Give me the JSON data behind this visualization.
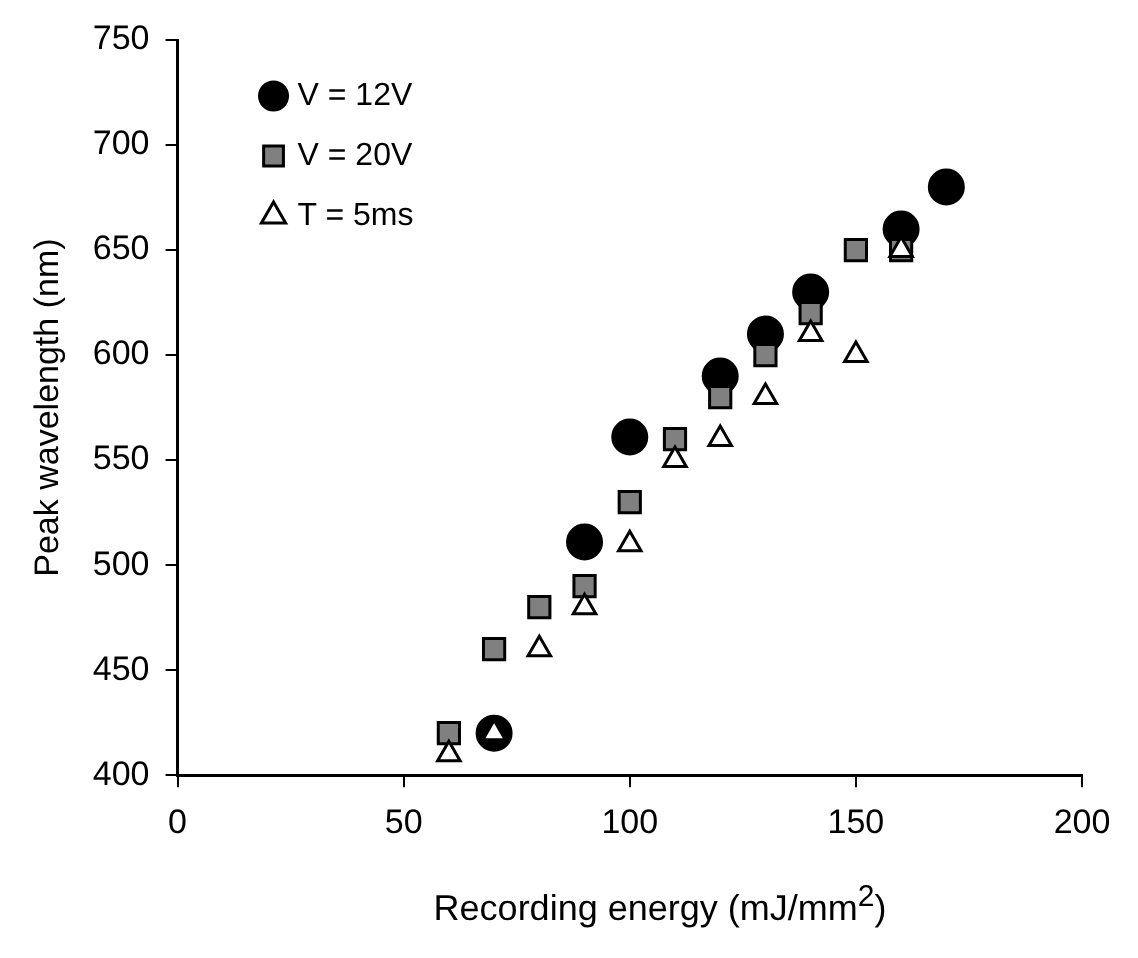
{
  "chart_data": {
    "type": "scatter",
    "xlabel": "Recording energy (mJ/mm$^{2}$)",
    "ylabel": "Peak wavelength (nm)",
    "xlim": [
      0,
      200
    ],
    "xticks": [
      0,
      50,
      100,
      150,
      200
    ],
    "ylim": [
      400,
      750
    ],
    "yticks": [
      400,
      450,
      500,
      550,
      600,
      650,
      700,
      750
    ],
    "grid": false,
    "legend": "top left",
    "series": [
      {
        "name": "V = 12V",
        "color": "#000000",
        "marker": "circle",
        "x": [
          70,
          90,
          100,
          120,
          130,
          140,
          160,
          170
        ],
        "values": [
          420,
          511,
          561,
          590,
          610,
          630,
          660,
          680
        ]
      },
      {
        "name": "V = 20V",
        "color": "#808080",
        "marker": "square",
        "x": [
          60,
          70,
          80,
          90,
          100,
          110,
          120,
          130,
          140,
          150,
          160
        ],
        "values": [
          420,
          460,
          480,
          490,
          530,
          560,
          580,
          600,
          620,
          650,
          650
        ]
      },
      {
        "name": "T = 5ms",
        "color": "#ffffff",
        "marker": "triangle",
        "x": [
          60,
          70,
          80,
          90,
          100,
          110,
          120,
          130,
          140,
          150,
          160
        ],
        "values": [
          410,
          420,
          460,
          480,
          510,
          550,
          560,
          580,
          610,
          600,
          650
        ]
      }
    ]
  }
}
